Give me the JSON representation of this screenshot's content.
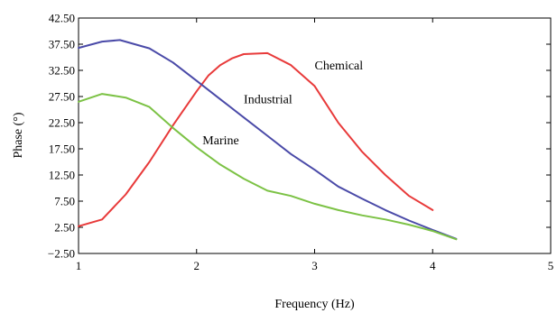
{
  "chart_data": {
    "type": "line",
    "title": "",
    "xlabel": "Frequency (Hz)",
    "ylabel": "Phase (°)",
    "xlim": [
      1,
      5
    ],
    "ylim": [
      -2.5,
      42.5
    ],
    "x_ticks": [
      1,
      2,
      3,
      4,
      5
    ],
    "y_ticks": [
      -2.5,
      2.5,
      7.5,
      12.5,
      17.5,
      22.5,
      27.5,
      32.5,
      37.5,
      42.5
    ],
    "x_tick_labels": [
      "1",
      "2",
      "3",
      "4",
      "5"
    ],
    "y_tick_labels": [
      "−2.50",
      "2.50",
      "7.50",
      "12.50",
      "17.50",
      "22.50",
      "27.50",
      "32.50",
      "37.50",
      "42.50"
    ],
    "grid": false,
    "series": [
      {
        "name": "Chemical",
        "color": "#e83a3a",
        "x": [
          1.0,
          1.2,
          1.4,
          1.6,
          1.8,
          2.0,
          2.1,
          2.2,
          2.3,
          2.4,
          2.6,
          2.8,
          3.0,
          3.1,
          3.2,
          3.4,
          3.6,
          3.8,
          4.0
        ],
        "y": [
          2.7,
          4.0,
          8.8,
          15.0,
          22.0,
          28.5,
          31.5,
          33.5,
          34.8,
          35.6,
          35.8,
          33.5,
          29.5,
          26.0,
          22.5,
          17.0,
          12.5,
          8.5,
          5.8
        ]
      },
      {
        "name": "Industrial",
        "color": "#4a4aa8",
        "x": [
          1.0,
          1.2,
          1.35,
          1.6,
          1.8,
          2.0,
          2.2,
          2.4,
          2.6,
          2.8,
          3.0,
          3.2,
          3.4,
          3.6,
          3.8,
          4.0,
          4.2
        ],
        "y": [
          36.8,
          38.0,
          38.3,
          36.7,
          34.0,
          30.5,
          27.0,
          23.5,
          20.0,
          16.5,
          13.5,
          10.3,
          8.0,
          5.8,
          3.8,
          2.0,
          0.3
        ]
      },
      {
        "name": "Marine",
        "color": "#7cc245",
        "x": [
          1.0,
          1.2,
          1.4,
          1.6,
          1.8,
          2.0,
          2.2,
          2.4,
          2.6,
          2.8,
          3.0,
          3.2,
          3.4,
          3.6,
          3.8,
          4.0,
          4.2
        ],
        "y": [
          26.5,
          28.0,
          27.3,
          25.5,
          21.5,
          17.8,
          14.5,
          11.8,
          9.5,
          8.5,
          7.0,
          5.8,
          4.8,
          4.0,
          3.0,
          1.8,
          0.2
        ]
      }
    ],
    "annotations": [
      {
        "text": "Chemical",
        "x": 3.0,
        "y": 32.7
      },
      {
        "text": "Industrial",
        "x": 2.4,
        "y": 26.2
      },
      {
        "text": "Marine",
        "x": 2.05,
        "y": 18.4
      }
    ]
  }
}
